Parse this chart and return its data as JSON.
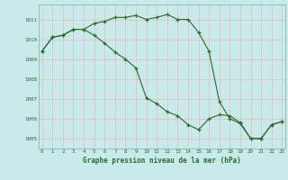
{
  "line1_x": [
    0,
    1,
    2,
    3,
    4,
    5,
    6,
    7,
    8,
    9,
    10,
    11,
    12,
    13,
    14,
    15,
    16,
    17,
    18,
    19,
    20,
    21,
    22,
    23
  ],
  "line1_y": [
    1009.4,
    1010.1,
    1010.2,
    1010.5,
    1010.5,
    1010.8,
    1010.9,
    1011.1,
    1011.1,
    1011.2,
    1011.0,
    1011.1,
    1011.25,
    1011.0,
    1011.0,
    1010.35,
    1009.4,
    1006.85,
    1006.0,
    1005.75,
    1005.0,
    1005.0,
    1005.7,
    1005.85
  ],
  "line2_x": [
    0,
    1,
    2,
    3,
    4,
    5,
    6,
    7,
    8,
    9,
    10,
    11,
    12,
    13,
    14,
    15,
    16,
    17,
    18,
    19,
    20,
    21,
    22,
    23
  ],
  "line2_y": [
    1009.4,
    1010.1,
    1010.2,
    1010.5,
    1010.5,
    1010.2,
    1009.8,
    1009.35,
    1009.0,
    1008.55,
    1007.05,
    1006.75,
    1006.35,
    1006.15,
    1005.7,
    1005.45,
    1006.0,
    1006.2,
    1006.15,
    1005.8,
    1005.0,
    1005.0,
    1005.7,
    1005.85
  ],
  "line_color": "#2d6a2d",
  "bg_color": "#c8eaea",
  "grid_color": "#b0d8d8",
  "border_color": "#8abaaa",
  "ylabel_ticks": [
    1005,
    1006,
    1007,
    1008,
    1009,
    1010,
    1011
  ],
  "xlabel_ticks": [
    0,
    1,
    2,
    3,
    4,
    5,
    6,
    7,
    8,
    9,
    10,
    11,
    12,
    13,
    14,
    15,
    16,
    17,
    18,
    19,
    20,
    21,
    22,
    23
  ],
  "xlabel": "Graphe pression niveau de la mer (hPa)",
  "ylim": [
    1004.5,
    1011.75
  ],
  "xlim": [
    -0.3,
    23.3
  ]
}
